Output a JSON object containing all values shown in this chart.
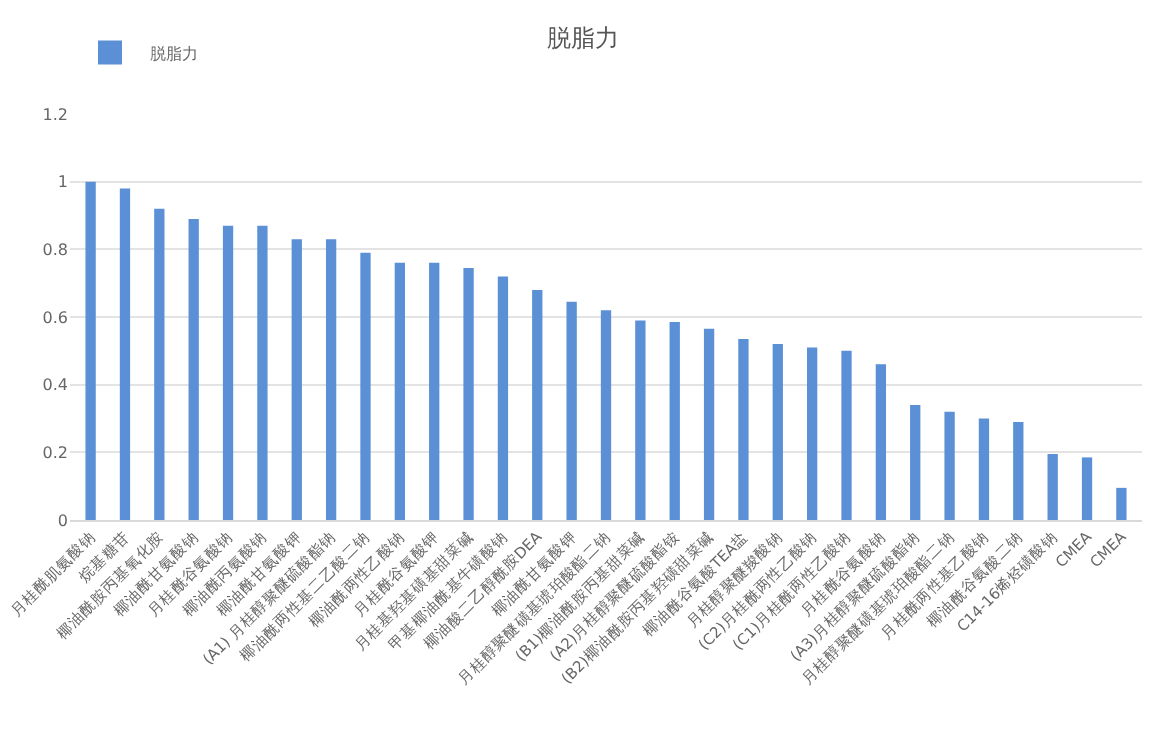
{
  "chart_data": {
    "type": "bar",
    "title": "脱脂力",
    "categories": [
      "月桂酰肌氨酸钠",
      "烷基糖苷",
      "椰油酰胺丙基氧化胺",
      "椰油酰甘氨酸钠",
      "月桂酰谷氨酸钠",
      "椰油酰丙氨酸钠",
      "椰油酰甘氨酸钾",
      "(A1) 月桂醇聚醚硫酸酯钠",
      "椰油酰两性基二乙酸二钠",
      "椰油酰两性乙酸钠",
      "月桂酰谷氨酸钾",
      "月桂基羟基磺基甜菜碱",
      "甲基椰油酰基牛磺酸钠",
      "椰油酸二乙醇酰胺DEA",
      "椰油酰甘氨酸钾",
      "月桂醇聚醚磺基琥珀酸酯二钠",
      "(B1)椰油酰胺丙基甜菜碱",
      "(A2)月桂醇聚醚硫酸酯铵",
      "(B2)椰油酰胺丙基羟磺甜菜碱",
      "椰油酰谷氨酸TEA盐",
      "月桂醇聚醚羧酸钠",
      "(C2)月桂酰两性乙酸钠",
      "(C1)月桂酰两性乙酸钠",
      "月桂酰谷氨酸钠",
      "(A3)月桂醇聚醚硫酸酯钠",
      "月桂醇聚醚磺基琥珀酸酯二钠",
      "月桂酰两性基乙酸钠",
      "椰油酰谷氨酸二钠",
      "C14-16烯烃磺酸钠",
      "CMEA",
      "CMEA"
    ],
    "series": [
      {
        "name": "脱脂力",
        "color": "#5b8fd6",
        "values": [
          1,
          0.98,
          0.92,
          0.89,
          0.87,
          0.87,
          0.83,
          0.83,
          0.79,
          0.76,
          0.76,
          0.745,
          0.72,
          0.68,
          0.645,
          0.62,
          0.59,
          0.585,
          0.565,
          0.535,
          0.52,
          0.51,
          0.5,
          0.46,
          0.34,
          0.32,
          0.3,
          0.29,
          0.195,
          0.185,
          0.095
        ]
      }
    ],
    "ylim": [
      0,
      1.2
    ],
    "yticks": [
      0,
      0.2,
      0.4,
      0.6,
      0.8,
      1,
      1.2
    ],
    "grid": "y",
    "legend": "top left"
  }
}
